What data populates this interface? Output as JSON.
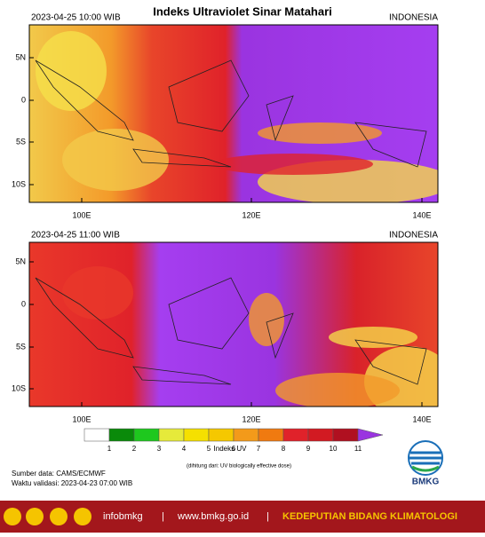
{
  "title": "Indeks Ultraviolet Sinar Matahari",
  "panels": [
    {
      "datetime": "2023-04-25  10:00 WIB",
      "region": "INDONESIA",
      "lat_ticks": [
        "5N",
        "0",
        "5S",
        "10S"
      ],
      "lon_ticks": [
        "100E",
        "120E",
        "140E"
      ]
    },
    {
      "datetime": "2023-04-25  11:00 WIB",
      "region": "INDONESIA",
      "lat_ticks": [
        "5N",
        "0",
        "5S",
        "10S"
      ],
      "lon_ticks": [
        "100E",
        "120E",
        "140E"
      ]
    }
  ],
  "colorbar": {
    "labels": [
      1,
      2,
      3,
      4,
      5,
      6,
      7,
      8,
      9,
      10,
      11
    ],
    "title": "Indeks UV",
    "subtitle": "(dihitung dari: UV biologically effective dose)"
  },
  "source": "Sumber data: CAMS/ECMWF",
  "validity": "Waktu validasi: 2023-04-23 07:00 WIB",
  "logo": "BMKG",
  "footer": {
    "handle": "infobmkg",
    "website": "www.bmkg.go.id",
    "department": "KEDEPUTIAN BIDANG KLIMATOLOGI"
  }
}
